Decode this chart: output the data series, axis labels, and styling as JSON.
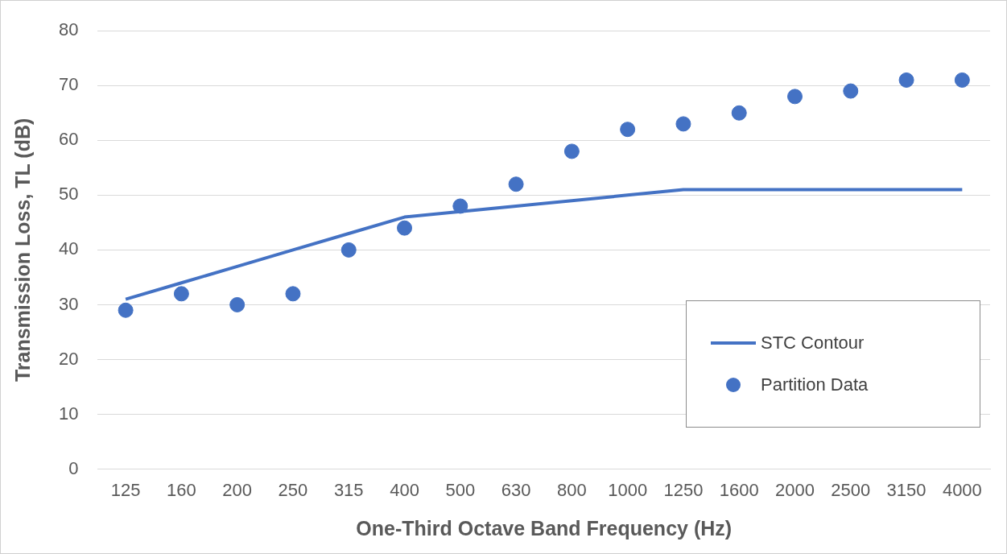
{
  "chart_data": {
    "type": "line",
    "xlabel": "One-Third Octave Band Frequency (Hz)",
    "ylabel": "Transmission Loss, TL (dB)",
    "categories": [
      "125",
      "160",
      "200",
      "250",
      "315",
      "400",
      "500",
      "630",
      "800",
      "1000",
      "1250",
      "1600",
      "2000",
      "2500",
      "3150",
      "4000"
    ],
    "series": [
      {
        "name": "STC Contour",
        "color": "#4472c4",
        "marker": "none",
        "values": [
          31,
          34,
          37,
          40,
          43,
          46,
          47,
          48,
          49,
          50,
          51,
          51,
          51,
          51,
          51,
          51
        ]
      },
      {
        "name": "Partition Data",
        "type": "scatter",
        "color": "#4472c4",
        "marker": "circle",
        "values": [
          29,
          32,
          30,
          32,
          40,
          44,
          48,
          52,
          58,
          62,
          63,
          65,
          68,
          69,
          71,
          71
        ]
      }
    ],
    "ylim": [
      0,
      80
    ],
    "yticks": [
      0,
      10,
      20,
      30,
      40,
      50,
      60,
      70,
      80
    ],
    "grid": "y",
    "legend": "bottom right"
  }
}
